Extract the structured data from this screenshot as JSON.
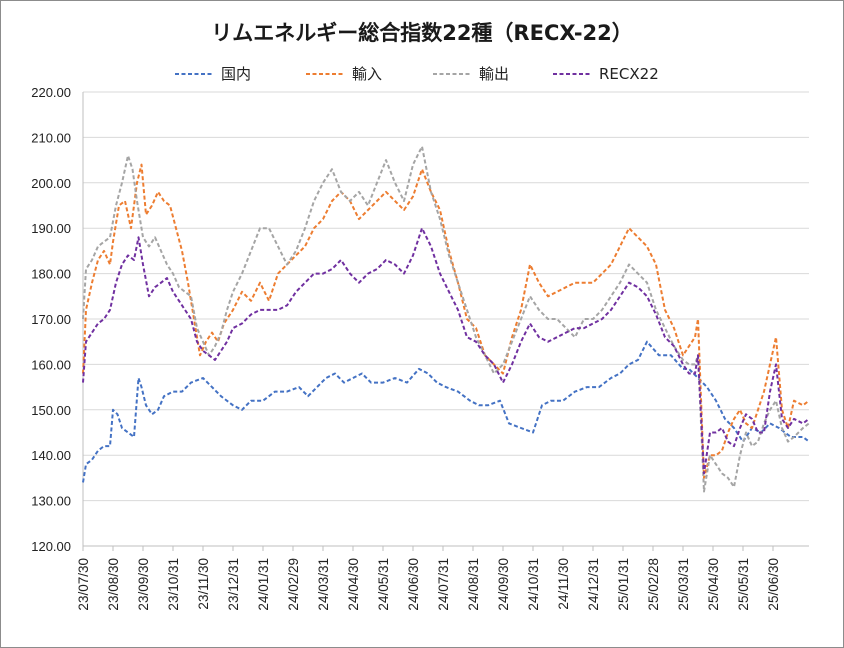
{
  "chart_data": {
    "type": "line",
    "title": "リムエネルギー総合指数22種（RECX-22）",
    "xlabel": "",
    "ylabel": "",
    "ylim": [
      120,
      220
    ],
    "yticks": [
      "120.00",
      "130.00",
      "140.00",
      "150.00",
      "160.00",
      "170.00",
      "180.00",
      "190.00",
      "200.00",
      "210.00",
      "220.00"
    ],
    "x_tick_labels": [
      "23/07/30",
      "23/08/30",
      "23/09/30",
      "23/10/31",
      "23/11/30",
      "23/12/31",
      "24/01/31",
      "24/02/29",
      "24/03/31",
      "24/04/30",
      "24/05/31",
      "24/06/30",
      "24/07/31",
      "24/08/31",
      "24/09/30",
      "24/10/31",
      "24/11/30",
      "24/12/31",
      "25/01/31",
      "25/02/28",
      "25/03/31",
      "25/04/30",
      "25/05/31",
      "25/06/30"
    ],
    "x_tick_months": [
      0,
      1,
      2,
      3,
      4,
      5,
      6,
      7,
      8,
      9,
      10,
      11,
      12,
      13,
      14,
      15,
      16,
      17,
      18,
      19,
      20,
      21,
      22,
      23
    ],
    "x_start": "23/07/30",
    "xlim": [
      0,
      24.2
    ],
    "grid": "horizontal",
    "legend_position": "top",
    "line_style": "dashed",
    "series": [
      {
        "name": "国内",
        "color": "#4472c4",
        "x": [
          0,
          0.1,
          0.3,
          0.5,
          0.7,
          0.9,
          1.0,
          1.15,
          1.3,
          1.5,
          1.7,
          1.85,
          1.95,
          2.1,
          2.3,
          2.5,
          2.7,
          3.0,
          3.3,
          3.6,
          4.0,
          4.3,
          4.6,
          5.0,
          5.3,
          5.6,
          6.0,
          6.4,
          6.8,
          7.2,
          7.5,
          7.8,
          8.1,
          8.4,
          8.7,
          9.0,
          9.3,
          9.6,
          10.0,
          10.4,
          10.8,
          11.2,
          11.5,
          11.8,
          12.1,
          12.5,
          12.9,
          13.2,
          13.5,
          13.9,
          14.2,
          14.6,
          15.0,
          15.3,
          15.6,
          16.0,
          16.4,
          16.8,
          17.2,
          17.6,
          17.9,
          18.2,
          18.5,
          18.8,
          19.2,
          19.6,
          20.0,
          20.2,
          20.5,
          20.8,
          21.1,
          21.4,
          21.7,
          22.0,
          22.3,
          22.6,
          22.9,
          23.2,
          23.6,
          24.0,
          24.2
        ],
        "values": [
          134,
          138,
          139,
          141,
          142,
          142,
          150,
          149,
          146,
          145,
          144,
          157,
          155,
          151,
          149,
          150,
          153,
          154,
          154,
          156,
          157,
          155,
          153,
          151,
          150,
          152,
          152,
          154,
          154,
          155,
          153,
          155,
          157,
          158,
          156,
          157,
          158,
          156,
          156,
          157,
          156,
          159,
          158,
          156,
          155,
          154,
          152,
          151,
          151,
          152,
          147,
          146,
          145,
          151,
          152,
          152,
          154,
          155,
          155,
          157,
          158,
          160,
          161,
          165,
          162,
          162,
          159,
          159,
          157,
          155,
          152,
          148,
          146,
          143,
          146,
          145,
          147,
          146,
          144,
          144,
          143
        ]
      },
      {
        "name": "輸入",
        "color": "#ed7d31",
        "x": [
          0,
          0.1,
          0.3,
          0.5,
          0.7,
          0.9,
          1.0,
          1.2,
          1.4,
          1.6,
          1.8,
          1.95,
          2.1,
          2.3,
          2.5,
          2.7,
          2.9,
          3.1,
          3.3,
          3.5,
          3.7,
          3.9,
          4.1,
          4.3,
          4.5,
          4.7,
          5.0,
          5.3,
          5.6,
          5.9,
          6.2,
          6.5,
          6.8,
          7.1,
          7.4,
          7.7,
          8.0,
          8.3,
          8.6,
          8.9,
          9.2,
          9.5,
          9.8,
          10.1,
          10.4,
          10.7,
          11.0,
          11.3,
          11.6,
          11.9,
          12.2,
          12.5,
          12.8,
          13.1,
          13.4,
          13.7,
          14.0,
          14.3,
          14.6,
          14.9,
          15.2,
          15.5,
          15.8,
          16.1,
          16.4,
          16.7,
          17.0,
          17.3,
          17.6,
          17.9,
          18.2,
          18.5,
          18.8,
          19.1,
          19.4,
          19.7,
          20.0,
          20.2,
          20.4,
          20.5,
          20.7,
          20.9,
          21.1,
          21.3,
          21.5,
          21.7,
          21.9,
          22.1,
          22.3,
          22.5,
          22.7,
          22.9,
          23.1,
          23.3,
          23.5,
          23.7,
          24.0,
          24.2
        ],
        "values": [
          158,
          172,
          178,
          183,
          185,
          182,
          187,
          195,
          196,
          190,
          200,
          204,
          193,
          195,
          198,
          196,
          195,
          190,
          185,
          178,
          170,
          162,
          165,
          167,
          165,
          169,
          172,
          176,
          174,
          178,
          174,
          180,
          182,
          184,
          186,
          190,
          192,
          196,
          198,
          196,
          192,
          194,
          196,
          198,
          196,
          194,
          197,
          203,
          198,
          194,
          185,
          178,
          170,
          168,
          162,
          160,
          158,
          166,
          172,
          182,
          178,
          175,
          176,
          177,
          178,
          178,
          178,
          180,
          182,
          186,
          190,
          188,
          186,
          182,
          172,
          168,
          162,
          164,
          166,
          170,
          135,
          140,
          140,
          141,
          145,
          148,
          150,
          147,
          146,
          150,
          154,
          160,
          166,
          150,
          146,
          152,
          151,
          152
        ]
      },
      {
        "name": "輸出",
        "color": "#a5a5a5",
        "x": [
          0,
          0.1,
          0.3,
          0.5,
          0.7,
          0.9,
          1.1,
          1.3,
          1.5,
          1.65,
          1.8,
          2.0,
          2.2,
          2.4,
          2.6,
          2.8,
          3.0,
          3.2,
          3.4,
          3.6,
          3.8,
          4.0,
          4.2,
          4.4,
          4.6,
          4.8,
          5.0,
          5.3,
          5.6,
          5.9,
          6.2,
          6.5,
          6.8,
          7.1,
          7.4,
          7.7,
          8.0,
          8.3,
          8.6,
          8.9,
          9.2,
          9.5,
          9.8,
          10.1,
          10.4,
          10.7,
          11.0,
          11.3,
          11.6,
          11.9,
          12.2,
          12.5,
          12.8,
          13.1,
          13.4,
          13.7,
          14.0,
          14.3,
          14.6,
          14.9,
          15.2,
          15.5,
          15.8,
          16.1,
          16.4,
          16.7,
          17.0,
          17.3,
          17.6,
          17.9,
          18.2,
          18.5,
          18.8,
          19.1,
          19.4,
          19.7,
          20.0,
          20.2,
          20.4,
          20.5,
          20.7,
          20.9,
          21.1,
          21.3,
          21.5,
          21.7,
          21.9,
          22.1,
          22.3,
          22.5,
          22.7,
          22.9,
          23.1,
          23.3,
          23.5,
          23.7,
          24.0,
          24.2
        ],
        "values": [
          170,
          181,
          183,
          186,
          187,
          188,
          195,
          200,
          206,
          203,
          196,
          188,
          186,
          188,
          185,
          182,
          180,
          177,
          176,
          175,
          168,
          165,
          162,
          164,
          167,
          172,
          176,
          180,
          185,
          190,
          190,
          186,
          182,
          185,
          190,
          196,
          200,
          203,
          198,
          196,
          198,
          195,
          200,
          205,
          200,
          196,
          204,
          208,
          198,
          192,
          184,
          178,
          172,
          166,
          162,
          158,
          160,
          165,
          170,
          175,
          172,
          170,
          170,
          168,
          166,
          170,
          170,
          172,
          175,
          178,
          182,
          180,
          178,
          172,
          168,
          164,
          161,
          160,
          160,
          162,
          132,
          140,
          138,
          136,
          135,
          133,
          140,
          145,
          142,
          143,
          147,
          150,
          152,
          146,
          143,
          144,
          146,
          147
        ]
      },
      {
        "name": "RECX22",
        "color": "#7030a0",
        "x": [
          0,
          0.1,
          0.3,
          0.5,
          0.7,
          0.9,
          1.1,
          1.3,
          1.5,
          1.7,
          1.85,
          2.0,
          2.2,
          2.4,
          2.6,
          2.8,
          3.0,
          3.2,
          3.4,
          3.6,
          3.8,
          4.0,
          4.2,
          4.4,
          4.6,
          4.8,
          5.0,
          5.3,
          5.6,
          5.9,
          6.2,
          6.5,
          6.8,
          7.1,
          7.4,
          7.7,
          8.0,
          8.3,
          8.6,
          8.9,
          9.2,
          9.5,
          9.8,
          10.1,
          10.4,
          10.7,
          11.0,
          11.3,
          11.6,
          11.9,
          12.2,
          12.5,
          12.8,
          13.1,
          13.4,
          13.7,
          14.0,
          14.3,
          14.6,
          14.9,
          15.2,
          15.5,
          15.8,
          16.1,
          16.4,
          16.7,
          17.0,
          17.3,
          17.6,
          17.9,
          18.2,
          18.5,
          18.8,
          19.1,
          19.4,
          19.7,
          20.0,
          20.2,
          20.4,
          20.5,
          20.7,
          20.9,
          21.1,
          21.3,
          21.5,
          21.7,
          21.9,
          22.1,
          22.3,
          22.5,
          22.7,
          22.9,
          23.1,
          23.3,
          23.5,
          23.7,
          24.0,
          24.2
        ],
        "values": [
          156,
          165,
          167,
          169,
          170,
          172,
          178,
          182,
          184,
          183,
          188,
          182,
          175,
          177,
          178,
          179,
          176,
          174,
          172,
          170,
          165,
          163,
          162,
          161,
          163,
          165,
          168,
          169,
          171,
          172,
          172,
          172,
          173,
          176,
          178,
          180,
          180,
          181,
          183,
          180,
          178,
          180,
          181,
          183,
          182,
          180,
          184,
          190,
          186,
          180,
          176,
          172,
          166,
          165,
          162,
          160,
          156,
          160,
          165,
          169,
          166,
          165,
          166,
          167,
          168,
          168,
          169,
          170,
          172,
          175,
          178,
          177,
          175,
          171,
          166,
          164,
          160,
          158,
          158,
          162,
          136,
          145,
          145,
          146,
          143,
          142,
          146,
          149,
          148,
          145,
          145,
          154,
          160,
          148,
          146,
          148,
          147,
          148
        ]
      }
    ]
  }
}
